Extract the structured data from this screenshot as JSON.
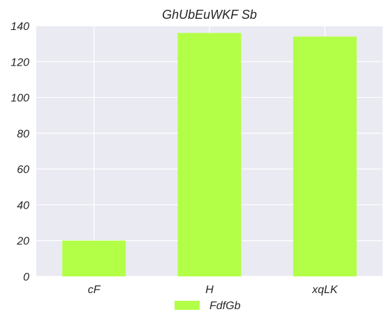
{
  "chart_data": {
    "type": "bar",
    "title": "GhUbEuWKF Sb",
    "xlabel": "",
    "ylabel": "",
    "categories": [
      "cF",
      "H",
      "xqLK"
    ],
    "series": [
      {
        "name": "FdfGb",
        "values": [
          20,
          136,
          134
        ]
      }
    ],
    "ylim": [
      0,
      140
    ],
    "yticks": [
      0,
      20,
      40,
      60,
      80,
      100,
      120,
      140
    ],
    "grid": true,
    "legend_position": "bottom-center",
    "colors": {
      "bar": "#b3ff47",
      "plot_background": "#eaeaf2",
      "grid": "#ffffff",
      "text": "#262626"
    }
  }
}
